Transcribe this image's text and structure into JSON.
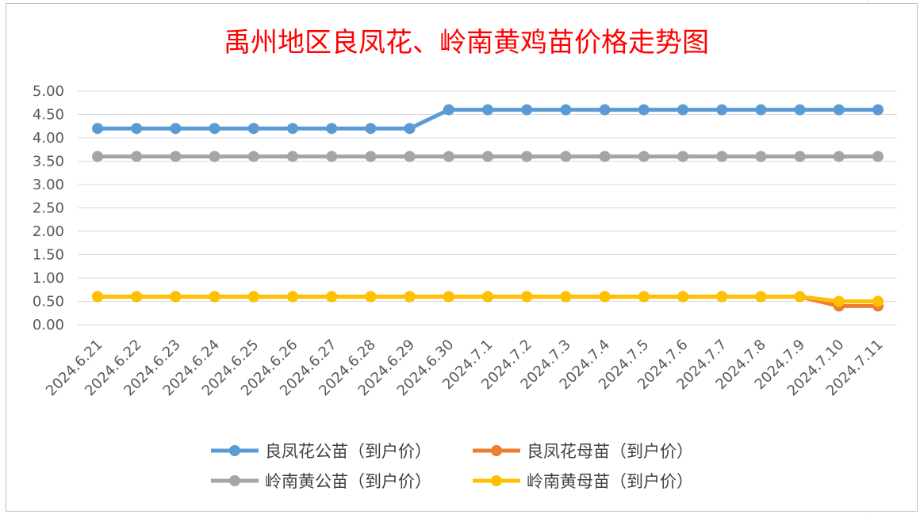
{
  "chart_data": {
    "type": "line",
    "title": "禹州地区良凤花、岭南黄鸡苗价格走势图",
    "xlabel": "",
    "ylabel": "",
    "ylim": [
      0,
      5
    ],
    "yticks": [
      "0.00",
      "0.50",
      "1.00",
      "1.50",
      "2.00",
      "2.50",
      "3.00",
      "3.50",
      "4.00",
      "4.50",
      "5.00"
    ],
    "grid": true,
    "legend_position": "bottom",
    "categories": [
      "2024.6.21",
      "2024.6.22",
      "2024.6.23",
      "2024.6.24",
      "2024.6.25",
      "2024.6.26",
      "2024.6.27",
      "2024.6.28",
      "2024.6.29",
      "2024.6.30",
      "2024.7.1",
      "2024.7.2",
      "2024.7.3",
      "2024.7.4",
      "2024.7.5",
      "2024.7.6",
      "2024.7.7",
      "2024.7.8",
      "2024.7.9",
      "2024.7.10",
      "2024.7.11"
    ],
    "series": [
      {
        "name": "良凤花公苗（到户价）",
        "color": "#5b9bd5",
        "values": [
          4.2,
          4.2,
          4.2,
          4.2,
          4.2,
          4.2,
          4.2,
          4.2,
          4.2,
          4.6,
          4.6,
          4.6,
          4.6,
          4.6,
          4.6,
          4.6,
          4.6,
          4.6,
          4.6,
          4.6,
          4.6
        ]
      },
      {
        "name": "良凤花母苗（到户价）",
        "color": "#ed7d31",
        "values": [
          0.6,
          0.6,
          0.6,
          0.6,
          0.6,
          0.6,
          0.6,
          0.6,
          0.6,
          0.6,
          0.6,
          0.6,
          0.6,
          0.6,
          0.6,
          0.6,
          0.6,
          0.6,
          0.6,
          0.4,
          0.4
        ]
      },
      {
        "name": "岭南黄公苗（到户价）",
        "color": "#a5a5a5",
        "values": [
          3.6,
          3.6,
          3.6,
          3.6,
          3.6,
          3.6,
          3.6,
          3.6,
          3.6,
          3.6,
          3.6,
          3.6,
          3.6,
          3.6,
          3.6,
          3.6,
          3.6,
          3.6,
          3.6,
          3.6,
          3.6
        ]
      },
      {
        "name": "岭南黄母苗（到户价）",
        "color": "#ffc000",
        "values": [
          0.6,
          0.6,
          0.6,
          0.6,
          0.6,
          0.6,
          0.6,
          0.6,
          0.6,
          0.6,
          0.6,
          0.6,
          0.6,
          0.6,
          0.6,
          0.6,
          0.6,
          0.6,
          0.6,
          0.5,
          0.5
        ]
      }
    ]
  }
}
